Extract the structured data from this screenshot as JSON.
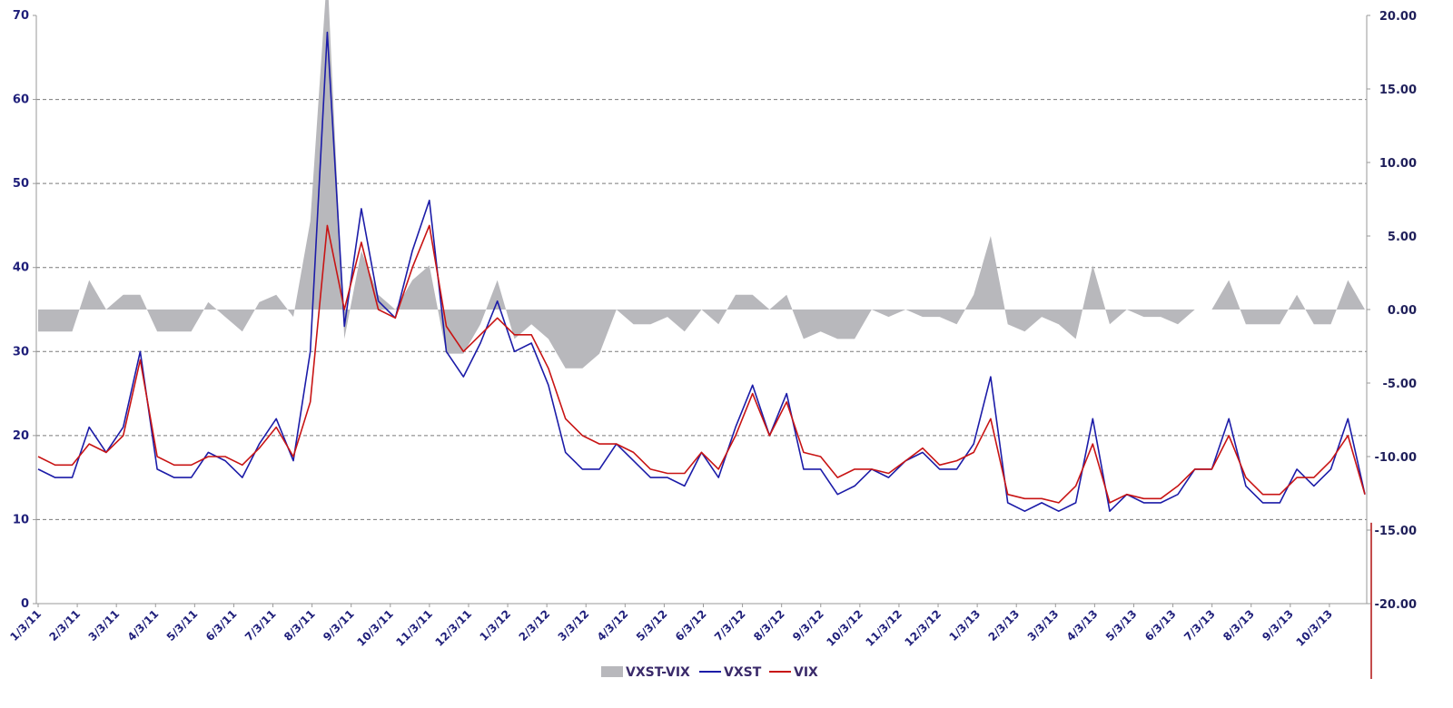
{
  "chart_data": {
    "type": "line",
    "title": "",
    "xlabel": "",
    "ylabel": "",
    "x_tick_labels": [
      "1/3/11",
      "2/3/11",
      "3/3/11",
      "4/3/11",
      "5/3/11",
      "6/3/11",
      "7/3/11",
      "8/3/11",
      "9/3/11",
      "10/3/11",
      "11/3/11",
      "12/3/11",
      "1/3/12",
      "2/3/12",
      "3/3/12",
      "4/3/12",
      "5/3/12",
      "6/3/12",
      "7/3/12",
      "8/3/12",
      "9/3/12",
      "10/3/12",
      "11/3/12",
      "12/3/12",
      "1/3/13",
      "2/3/13",
      "3/3/13",
      "4/3/13",
      "5/3/13",
      "6/3/13",
      "7/3/13",
      "8/3/13",
      "9/3/13",
      "10/3/13"
    ],
    "y_left": {
      "ticks": [
        "0",
        "10",
        "20",
        "30",
        "40",
        "50",
        "60",
        "70"
      ],
      "ylim": [
        0,
        70
      ]
    },
    "y_right": {
      "ticks": [
        "20.00",
        "15.00",
        "10.00",
        "5.00",
        "0.00",
        "-5.00",
        "-10.00",
        "-15.00",
        "-20.00"
      ],
      "ylim": [
        -20,
        20
      ]
    },
    "grid": "horizontal dashed",
    "legend_position": "bottom",
    "colors": {
      "VXST-VIX": "#b8b8bc",
      "VXST": "#1c1ca8",
      "VIX": "#c81414"
    },
    "x": [
      "1/3/11",
      "1/17/11",
      "2/3/11",
      "2/17/11",
      "3/3/11",
      "3/15/11",
      "3/21/11",
      "4/3/11",
      "4/18/11",
      "5/3/11",
      "5/17/11",
      "6/3/11",
      "6/17/11",
      "7/3/11",
      "7/18/11",
      "8/3/11",
      "8/8/11",
      "8/10/11",
      "8/15/11",
      "8/22/11",
      "9/3/11",
      "9/19/11",
      "10/3/11",
      "10/11/11",
      "10/20/11",
      "10/27/11",
      "11/3/11",
      "11/10/11",
      "11/17/11",
      "12/3/11",
      "12/13/11",
      "1/3/12",
      "1/18/12",
      "2/3/12",
      "2/17/12",
      "3/3/12",
      "3/19/12",
      "4/3/12",
      "4/18/12",
      "5/3/12",
      "5/18/12",
      "6/3/12",
      "6/18/12",
      "7/3/12",
      "7/18/12",
      "8/3/12",
      "8/17/12",
      "9/3/12",
      "9/18/12",
      "10/3/12",
      "10/18/12",
      "11/3/12",
      "11/16/12",
      "12/3/12",
      "12/18/12",
      "12/28/12",
      "1/3/13",
      "1/18/13",
      "2/3/13",
      "2/19/13",
      "2/25/13",
      "3/3/13",
      "3/18/13",
      "4/3/13",
      "4/18/13",
      "5/3/13",
      "5/17/13",
      "6/3/13",
      "6/20/13",
      "7/3/13",
      "7/18/13",
      "8/3/13",
      "8/19/13",
      "9/3/13",
      "9/18/13",
      "10/3/13",
      "10/9/13",
      "10/18/13",
      "10/28/13"
    ],
    "series": [
      {
        "name": "VXST",
        "axis": "left",
        "values": [
          16,
          15,
          15,
          21,
          18,
          21,
          30,
          16,
          15,
          15,
          18,
          17,
          15,
          19,
          22,
          17,
          30,
          68,
          33,
          47,
          36,
          34,
          42,
          48,
          30,
          27,
          31,
          36,
          30,
          31,
          26,
          18,
          16,
          16,
          19,
          17,
          15,
          15,
          14,
          18,
          15,
          21,
          26,
          20,
          25,
          16,
          16,
          13,
          14,
          16,
          15,
          17,
          18,
          16,
          16,
          19,
          27,
          12,
          11,
          12,
          11,
          12,
          22,
          11,
          13,
          12,
          12,
          13,
          16,
          16,
          22,
          14,
          12,
          12,
          16,
          14,
          16,
          22,
          13
        ]
      },
      {
        "name": "VIX",
        "axis": "left",
        "values": [
          17.5,
          16.5,
          16.5,
          19,
          18,
          20,
          29,
          17.5,
          16.5,
          16.5,
          17.5,
          17.5,
          16.5,
          18.5,
          21,
          17.5,
          24,
          45,
          35,
          43,
          35,
          34,
          40,
          45,
          33,
          30,
          32,
          34,
          32,
          32,
          28,
          22,
          20,
          19,
          19,
          18,
          16,
          15.5,
          15.5,
          18,
          16,
          20,
          25,
          20,
          24,
          18,
          17.5,
          15,
          16,
          16,
          15.5,
          17,
          18.5,
          16.5,
          17,
          18,
          22,
          13,
          12.5,
          12.5,
          12,
          14,
          19,
          12,
          13,
          12.5,
          12.5,
          14,
          16,
          16,
          20,
          15,
          13,
          13,
          15,
          15,
          17,
          20,
          13
        ]
      },
      {
        "name": "VXST-VIX",
        "axis": "right",
        "values": [
          -1.5,
          -1.5,
          -1.5,
          2,
          0,
          1,
          1,
          -1.5,
          -1.5,
          -1.5,
          0.5,
          -0.5,
          -1.5,
          0.5,
          1,
          -0.5,
          6,
          23,
          -2,
          4,
          1,
          0,
          2,
          3,
          -3,
          -3,
          -1,
          2,
          -2,
          -1,
          -2,
          -4,
          -4,
          -3,
          0,
          -1,
          -1,
          -0.5,
          -1.5,
          0,
          -1,
          1,
          1,
          0,
          1,
          -2,
          -1.5,
          -2,
          -2,
          0,
          -0.5,
          0,
          -0.5,
          -0.5,
          -1,
          1,
          5,
          -1,
          -1.5,
          -0.5,
          -1,
          -2,
          3,
          -1,
          0,
          -0.5,
          -0.5,
          -1,
          0,
          0,
          2,
          -1,
          -1,
          -1,
          1,
          -1,
          -1,
          2,
          0
        ]
      }
    ]
  }
}
